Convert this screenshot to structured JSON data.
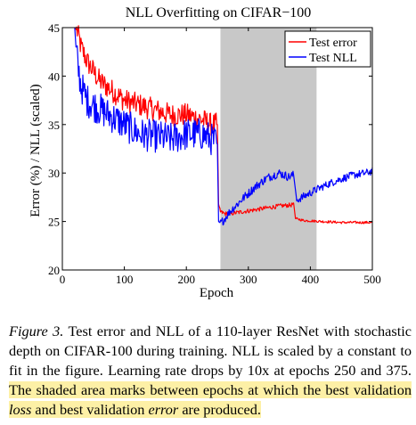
{
  "chart_data": {
    "type": "line",
    "title": "NLL Overfitting on CIFAR−100",
    "xlabel": "Epoch",
    "ylabel": "Error (%) / NLL (scaled)",
    "xlim": [
      0,
      500
    ],
    "ylim": [
      20,
      45
    ],
    "xticks": [
      0,
      100,
      200,
      300,
      400,
      500
    ],
    "yticks": [
      20,
      25,
      30,
      35,
      40,
      45
    ],
    "legend_position": "top-right",
    "shaded_region": {
      "x_start": 255,
      "x_end": 410,
      "color": "#c8c8c8"
    },
    "series": [
      {
        "name": "Test error",
        "color": "#ff0000",
        "points": [
          [
            20,
            45
          ],
          [
            25,
            44.5
          ],
          [
            30,
            43
          ],
          [
            40,
            41.5
          ],
          [
            50,
            40.5
          ],
          [
            60,
            39.5
          ],
          [
            80,
            38.5
          ],
          [
            100,
            37.5
          ],
          [
            125,
            37
          ],
          [
            150,
            36.5
          ],
          [
            175,
            36
          ],
          [
            200,
            36
          ],
          [
            225,
            35.5
          ],
          [
            240,
            35
          ],
          [
            250,
            35
          ],
          [
            252,
            26.8
          ],
          [
            255,
            26
          ],
          [
            262,
            25.8
          ],
          [
            270,
            25.8
          ],
          [
            290,
            26
          ],
          [
            310,
            26.2
          ],
          [
            330,
            26.4
          ],
          [
            350,
            26.6
          ],
          [
            370,
            26.7
          ],
          [
            373,
            26.9
          ],
          [
            376,
            25.3
          ],
          [
            390,
            25.1
          ],
          [
            420,
            25
          ],
          [
            450,
            24.9
          ],
          [
            480,
            24.9
          ],
          [
            500,
            24.9
          ]
        ]
      },
      {
        "name": "Test NLL",
        "color": "#0000ff",
        "points": [
          [
            20,
            45
          ],
          [
            22,
            43
          ],
          [
            25,
            41
          ],
          [
            30,
            39
          ],
          [
            40,
            37.5
          ],
          [
            50,
            37
          ],
          [
            75,
            36
          ],
          [
            100,
            35
          ],
          [
            125,
            34
          ],
          [
            150,
            33.8
          ],
          [
            175,
            33.5
          ],
          [
            200,
            34
          ],
          [
            225,
            34
          ],
          [
            240,
            33.5
          ],
          [
            250,
            33
          ],
          [
            252,
            25
          ],
          [
            255,
            24.8
          ],
          [
            262,
            25.3
          ],
          [
            270,
            26
          ],
          [
            290,
            27.3
          ],
          [
            310,
            28.5
          ],
          [
            330,
            29.5
          ],
          [
            350,
            30
          ],
          [
            365,
            29.6
          ],
          [
            373,
            29.8
          ],
          [
            378,
            27.2
          ],
          [
            390,
            27.6
          ],
          [
            410,
            28.3
          ],
          [
            430,
            28.9
          ],
          [
            450,
            29.4
          ],
          [
            470,
            29.8
          ],
          [
            490,
            30
          ],
          [
            500,
            30.2
          ]
        ]
      }
    ]
  },
  "caption": {
    "figure_label": "Figure 3.",
    "text_plain": " Test error and NLL of a 110-layer ResNet with stochastic depth on CIFAR-100 during training. NLL is scaled by a constant to fit in the figure. Learning rate drops by 10x at epochs 250 and 375. ",
    "hl_part1": "The shaded area marks between epochs at which the best validation ",
    "hl_em1": "loss",
    "hl_part2": " and best validation ",
    "hl_em2": "error",
    "hl_part3": " are produced."
  }
}
